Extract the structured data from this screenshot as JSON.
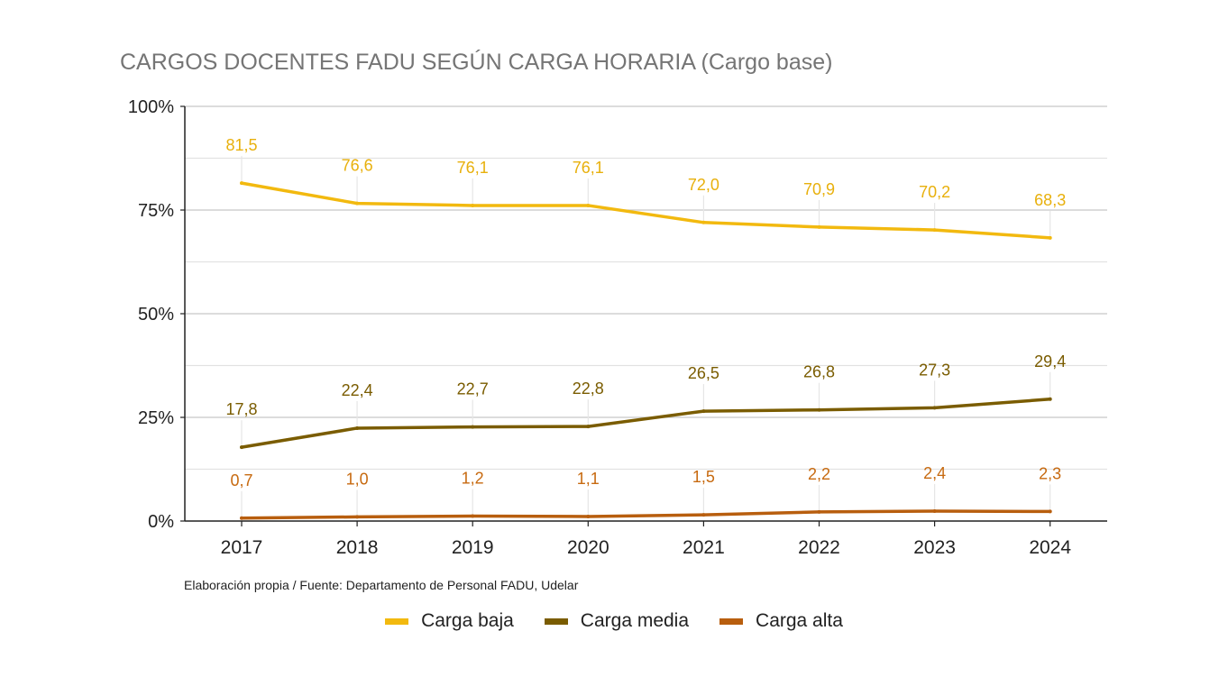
{
  "chart_data": {
    "type": "line",
    "title": "CARGOS DOCENTES FADU SEGÚN CARGA HORARIA (Cargo base)",
    "x": [
      "2017",
      "2018",
      "2019",
      "2020",
      "2021",
      "2022",
      "2023",
      "2024"
    ],
    "ylim": [
      0,
      100
    ],
    "yticks": [
      0,
      25,
      50,
      75,
      100
    ],
    "ytick_labels": [
      "0%",
      "25%",
      "50%",
      "75%",
      "100%"
    ],
    "grid": true,
    "legend_position": "bottom",
    "series": [
      {
        "name": "Carga baja",
        "color": "#F2B90F",
        "label_color": "#E8B00C",
        "values": [
          81.5,
          76.6,
          76.1,
          76.1,
          72.0,
          70.9,
          70.2,
          68.3
        ],
        "labels": [
          "81,5",
          "76,6",
          "76,1",
          "76,1",
          "72,0",
          "70,9",
          "70,2",
          "68,3"
        ]
      },
      {
        "name": "Carga media",
        "color": "#7A5C00",
        "label_color": "#7A5C00",
        "values": [
          17.8,
          22.4,
          22.7,
          22.8,
          26.5,
          26.8,
          27.3,
          29.4
        ],
        "labels": [
          "17,8",
          "22,4",
          "22,7",
          "22,8",
          "26,5",
          "26,8",
          "27,3",
          "29,4"
        ]
      },
      {
        "name": "Carga alta",
        "color": "#B85E0E",
        "label_color": "#C76A10",
        "values": [
          0.7,
          1.0,
          1.2,
          1.1,
          1.5,
          2.2,
          2.4,
          2.3
        ],
        "labels": [
          "0,7",
          "1,0",
          "1,2",
          "1,1",
          "1,5",
          "2,2",
          "2,4",
          "2,3"
        ]
      }
    ],
    "source": "Elaboración propia / Fuente: Departamento de Personal FADU, Udelar"
  }
}
